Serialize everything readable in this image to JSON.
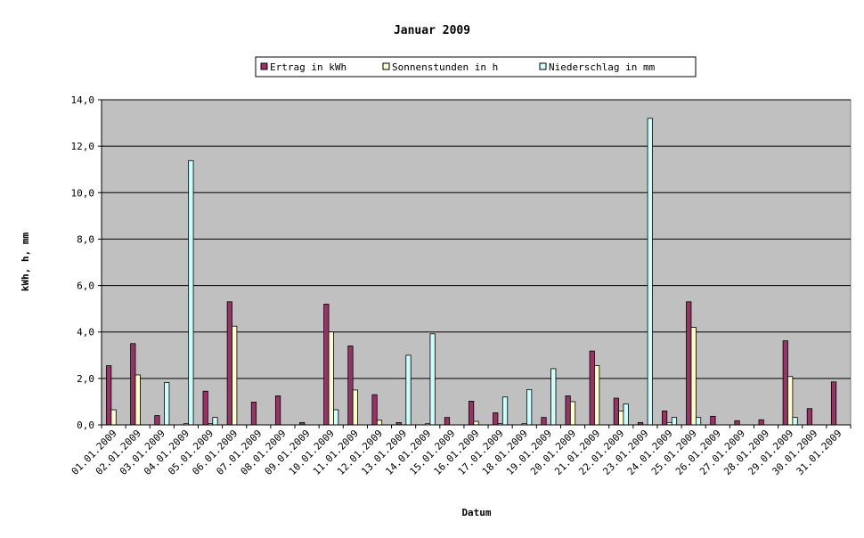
{
  "chart_data": {
    "type": "bar",
    "title": "Januar 2009",
    "xlabel": "Datum",
    "ylabel": "kWh, h, mm",
    "ylim": [
      0,
      14
    ],
    "yticks": [
      "0,0",
      "2,0",
      "4,0",
      "6,0",
      "8,0",
      "10,0",
      "12,0",
      "14,0"
    ],
    "ytick_values": [
      0,
      2,
      4,
      6,
      8,
      10,
      12,
      14
    ],
    "grid": true,
    "legend_position": "top",
    "categories": [
      "01.01.2009",
      "02.01.2009",
      "03.01.2009",
      "04.01.2009",
      "05.01.2009",
      "06.01.2009",
      "07.01.2009",
      "08.01.2009",
      "09.01.2009",
      "10.01.2009",
      "11.01.2009",
      "12.01.2009",
      "13.01.2009",
      "14.01.2009",
      "15.01.2009",
      "16.01.2009",
      "17.01.2009",
      "18.01.2009",
      "19.01.2009",
      "20.01.2009",
      "21.01.2009",
      "22.01.2009",
      "23.01.2009",
      "24.01.2009",
      "25.01.2009",
      "26.01.2009",
      "27.01.2009",
      "28.01.2009",
      "29.01.2009",
      "30.01.2009",
      "31.01.2009"
    ],
    "series": [
      {
        "name": "Ertrag in kWh",
        "color": "#993366",
        "values": [
          2.55,
          3.5,
          0.4,
          0,
          1.45,
          5.3,
          0.98,
          1.25,
          0.1,
          5.2,
          3.4,
          1.3,
          0.1,
          0,
          0.32,
          1.02,
          0.52,
          0,
          0.32,
          1.25,
          3.18,
          1.15,
          0.1,
          0.6,
          5.3,
          0.37,
          0.18,
          0.22,
          3.62,
          0.7,
          1.85
        ]
      },
      {
        "name": "Sonnenstunden in h",
        "color": "#ffffcc",
        "values": [
          0.65,
          2.15,
          0,
          0.05,
          0.05,
          4.25,
          0,
          0,
          0,
          4.0,
          1.5,
          0.2,
          0,
          0.05,
          0,
          0.15,
          0.05,
          0.05,
          0,
          1.0,
          2.55,
          0.6,
          0,
          0.1,
          4.2,
          0,
          0,
          0,
          2.08,
          0,
          0
        ]
      },
      {
        "name": "Niederschlag in mm",
        "color": "#ccffff",
        "values": [
          0,
          0,
          1.82,
          11.38,
          0.32,
          0,
          0,
          0,
          0,
          0.65,
          0,
          0,
          3.0,
          3.92,
          0,
          0,
          1.2,
          1.52,
          2.42,
          0,
          0,
          0.9,
          13.2,
          0.32,
          0.32,
          0,
          0,
          0,
          0.32,
          0,
          0
        ]
      }
    ]
  }
}
